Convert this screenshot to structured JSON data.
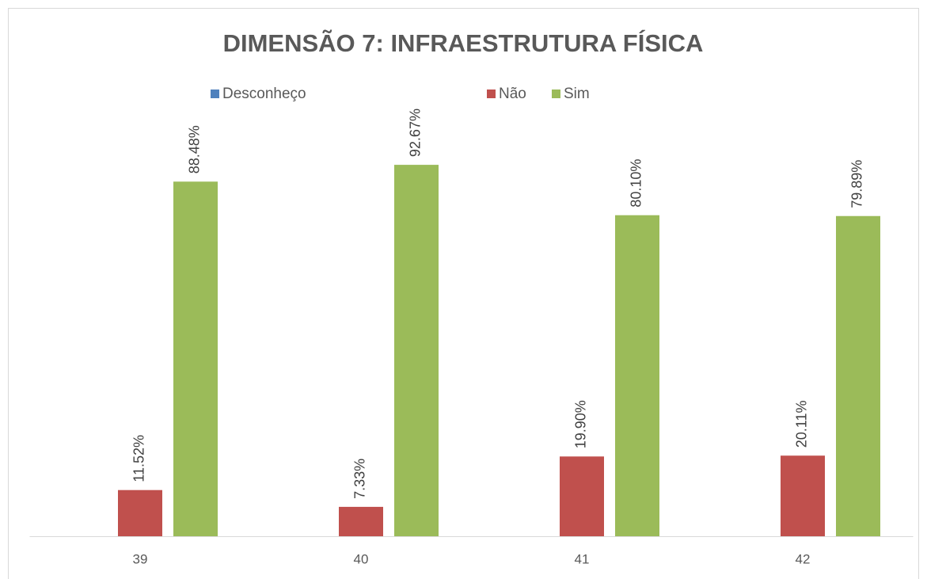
{
  "chart_data": {
    "type": "bar",
    "title": "DIMENSÃO 7: INFRAESTRUTURA FÍSICA",
    "categories": [
      "39",
      "40",
      "41",
      "42"
    ],
    "series": [
      {
        "name": "Desconheço",
        "color": "#4f81bd",
        "values": [
          0,
          0,
          0,
          0
        ]
      },
      {
        "name": "Não",
        "color": "#c0504d",
        "values": [
          11.52,
          7.33,
          19.9,
          20.11
        ],
        "value_labels": [
          "11.52%",
          "7.33%",
          "19.90%",
          "20.11%"
        ]
      },
      {
        "name": "Sim",
        "color": "#9bbb59",
        "values": [
          88.48,
          92.67,
          80.1,
          79.89
        ],
        "value_labels": [
          "88.48%",
          "92.67%",
          "80.10%",
          "79.89%"
        ]
      }
    ],
    "ylim": [
      0,
      100
    ],
    "legend": "top"
  }
}
